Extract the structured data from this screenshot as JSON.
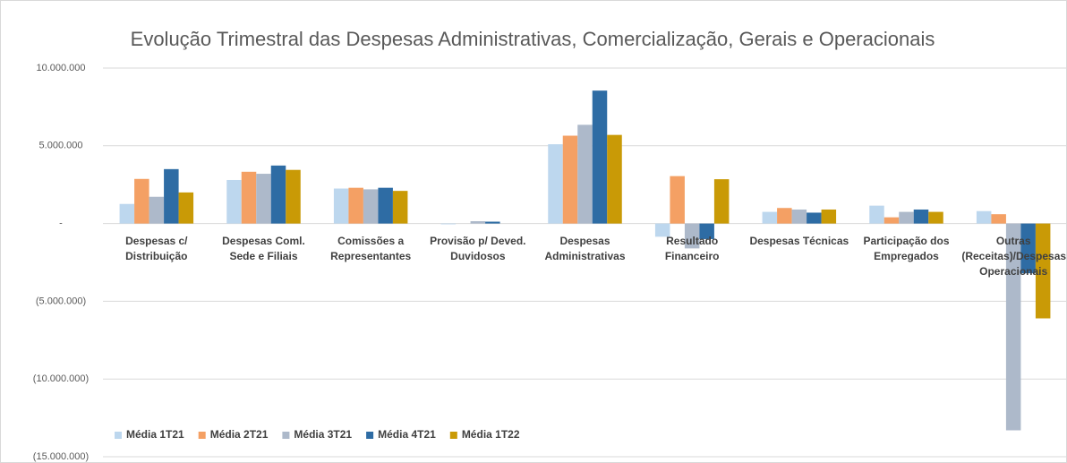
{
  "chart_data": {
    "type": "bar",
    "title": "Evolução Trimestral das Despesas Administrativas, Comercialização, Gerais e Operacionais",
    "categories": [
      "Despesas c/ Distribuição",
      "Despesas Coml. Sede e Filiais",
      "Comissões a Representantes",
      "Provisão p/ Deved. Duvidosos",
      "Despesas Administrativas",
      "Resultado Financeiro",
      "Despesas  Técnicas",
      "Participação dos Empregados",
      "Outras (Receitas)/Despesas Operacionais"
    ],
    "series": [
      {
        "name": "Média 1T21",
        "color": "#bdd7ee",
        "values": [
          1260000,
          2800000,
          2250000,
          -50000,
          5100000,
          -850000,
          750000,
          1150000,
          800000
        ]
      },
      {
        "name": "Média 2T21",
        "color": "#f4a064",
        "values": [
          2870000,
          3330000,
          2300000,
          0,
          5650000,
          3050000,
          1000000,
          400000,
          600000
        ]
      },
      {
        "name": "Média 3T21",
        "color": "#adb9ca",
        "values": [
          1720000,
          3200000,
          2200000,
          150000,
          6350000,
          -1600000,
          900000,
          750000,
          -13300000
        ]
      },
      {
        "name": "Média 4T21",
        "color": "#2e6ca4",
        "values": [
          3500000,
          3730000,
          2300000,
          120000,
          8550000,
          -1000000,
          700000,
          900000,
          -3200000
        ]
      },
      {
        "name": "Média 1T22",
        "color": "#c99a06",
        "values": [
          2000000,
          3450000,
          2100000,
          0,
          5700000,
          2850000,
          900000,
          750000,
          -6100000
        ]
      }
    ],
    "ylim": [
      -15000000,
      10000000
    ],
    "yticks": [
      {
        "value": -15000000,
        "label": "(15.000.000)"
      },
      {
        "value": -10000000,
        "label": "(10.000.000)"
      },
      {
        "value": -5000000,
        "label": "(5.000.000)"
      },
      {
        "value": 0,
        "label": "-"
      },
      {
        "value": 5000000,
        "label": "5.000.000"
      },
      {
        "value": 10000000,
        "label": "10.000.000"
      }
    ],
    "grid": true,
    "legend": "bottom-left"
  }
}
